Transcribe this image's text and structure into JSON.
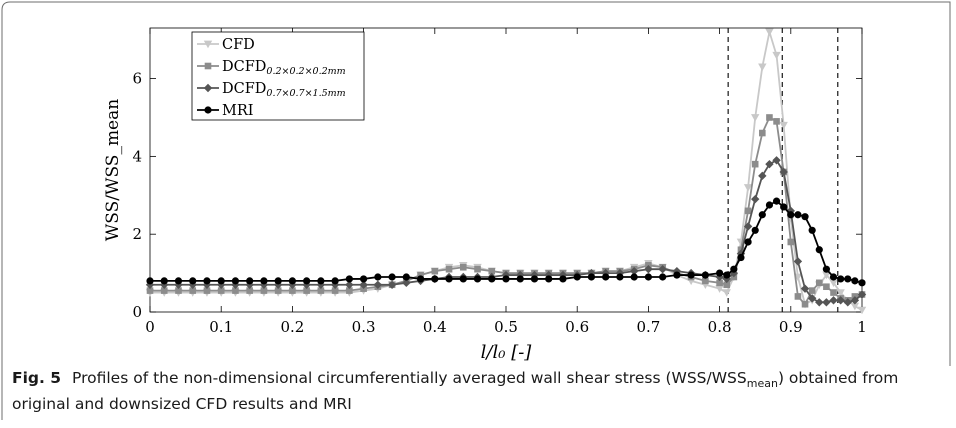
{
  "caption": {
    "label": "Fig. 5",
    "text_before": "Profiles of the non-dimensional circumferentially averaged wall shear stress (WSS/WSS",
    "text_sub": "mean",
    "text_after": ") obtained from original and downsized CFD results and MRI"
  },
  "chart_data": {
    "type": "line",
    "title": "",
    "xlabel": "l/l₀ [-]",
    "ylabel": "WSS/WSS_mean",
    "xlim": [
      0,
      1
    ],
    "ylim": [
      0,
      7.3
    ],
    "x_ticks": [
      0,
      0.1,
      0.2,
      0.3,
      0.4,
      0.5,
      0.6,
      0.7,
      0.8,
      0.9,
      1
    ],
    "x_tick_labels": [
      "0",
      "0.1",
      "0.2",
      "0.3",
      "0.4",
      "0.5",
      "0.6",
      "0.7",
      "0.8",
      "0.9",
      "1"
    ],
    "y_ticks": [
      0,
      2,
      4,
      6
    ],
    "y_tick_labels": [
      "0",
      "2",
      "4",
      "6"
    ],
    "grid": false,
    "legend_position": "top-left",
    "vertical_lines": [
      0.812,
      0.888,
      0.966
    ],
    "series": [
      {
        "name": "CFD",
        "legend_main": "CFD",
        "legend_sub": "",
        "color": "#c8c8c8",
        "marker": "triangle-down",
        "x": [
          0,
          0.02,
          0.04,
          0.06,
          0.08,
          0.1,
          0.12,
          0.14,
          0.16,
          0.18,
          0.2,
          0.22,
          0.24,
          0.26,
          0.28,
          0.3,
          0.32,
          0.34,
          0.36,
          0.38,
          0.4,
          0.42,
          0.44,
          0.46,
          0.48,
          0.5,
          0.52,
          0.54,
          0.56,
          0.58,
          0.6,
          0.62,
          0.64,
          0.66,
          0.68,
          0.7,
          0.72,
          0.74,
          0.76,
          0.78,
          0.8,
          0.81,
          0.82,
          0.83,
          0.84,
          0.85,
          0.86,
          0.87,
          0.88,
          0.89,
          0.9,
          0.91,
          0.92,
          0.93,
          0.94,
          0.95,
          0.96,
          0.97,
          0.98,
          0.99,
          1
        ],
        "y": [
          0.5,
          0.5,
          0.5,
          0.5,
          0.5,
          0.5,
          0.5,
          0.5,
          0.5,
          0.5,
          0.5,
          0.5,
          0.5,
          0.5,
          0.5,
          0.55,
          0.6,
          0.7,
          0.8,
          0.95,
          1.05,
          1.15,
          1.2,
          1.15,
          1.05,
          1.0,
          1.0,
          1.0,
          1.0,
          1.0,
          1.0,
          1.0,
          1.05,
          1.05,
          1.15,
          1.25,
          1.15,
          0.95,
          0.8,
          0.7,
          0.6,
          0.5,
          0.9,
          1.8,
          3.2,
          5.0,
          6.3,
          7.2,
          6.6,
          4.8,
          2.4,
          0.9,
          0.2,
          0.3,
          0.7,
          0.95,
          0.75,
          0.5,
          0.3,
          0.15,
          0.05
        ]
      },
      {
        "name": "DCFD 0.2×0.2×0.2mm",
        "legend_main": "DCFD",
        "legend_sub": "0.2×0.2×0.2mm",
        "color": "#8c8c8c",
        "marker": "square",
        "x": [
          0,
          0.02,
          0.04,
          0.06,
          0.08,
          0.1,
          0.12,
          0.14,
          0.16,
          0.18,
          0.2,
          0.22,
          0.24,
          0.26,
          0.28,
          0.3,
          0.32,
          0.34,
          0.36,
          0.38,
          0.4,
          0.42,
          0.44,
          0.46,
          0.48,
          0.5,
          0.52,
          0.54,
          0.56,
          0.58,
          0.6,
          0.62,
          0.64,
          0.66,
          0.68,
          0.7,
          0.72,
          0.74,
          0.76,
          0.78,
          0.8,
          0.81,
          0.82,
          0.83,
          0.84,
          0.85,
          0.86,
          0.87,
          0.88,
          0.89,
          0.9,
          0.91,
          0.92,
          0.93,
          0.94,
          0.95,
          0.96,
          0.97,
          0.98,
          0.99,
          1
        ],
        "y": [
          0.55,
          0.55,
          0.55,
          0.55,
          0.55,
          0.55,
          0.55,
          0.55,
          0.55,
          0.55,
          0.55,
          0.55,
          0.55,
          0.55,
          0.55,
          0.6,
          0.65,
          0.7,
          0.8,
          0.95,
          1.05,
          1.1,
          1.15,
          1.1,
          1.05,
          1.0,
          1.0,
          1.0,
          1.0,
          1.0,
          1.0,
          1.0,
          1.05,
          1.05,
          1.1,
          1.2,
          1.15,
          1.0,
          0.9,
          0.8,
          0.75,
          0.7,
          0.9,
          1.6,
          2.6,
          3.8,
          4.6,
          5.0,
          4.9,
          3.6,
          1.8,
          0.4,
          0.2,
          0.55,
          0.75,
          0.65,
          0.5,
          0.35,
          0.3,
          0.4,
          0.45
        ]
      },
      {
        "name": "DCFD 0.7×0.7×1.5mm",
        "legend_main": "DCFD",
        "legend_sub": "0.7×0.7×1.5mm",
        "color": "#555555",
        "marker": "diamond",
        "x": [
          0,
          0.02,
          0.04,
          0.06,
          0.08,
          0.1,
          0.12,
          0.14,
          0.16,
          0.18,
          0.2,
          0.22,
          0.24,
          0.26,
          0.28,
          0.3,
          0.32,
          0.34,
          0.36,
          0.38,
          0.4,
          0.42,
          0.44,
          0.46,
          0.48,
          0.5,
          0.52,
          0.54,
          0.56,
          0.58,
          0.6,
          0.62,
          0.64,
          0.66,
          0.68,
          0.7,
          0.72,
          0.74,
          0.76,
          0.78,
          0.8,
          0.81,
          0.82,
          0.83,
          0.84,
          0.85,
          0.86,
          0.87,
          0.88,
          0.89,
          0.9,
          0.91,
          0.92,
          0.93,
          0.94,
          0.95,
          0.96,
          0.97,
          0.98,
          0.99,
          1
        ],
        "y": [
          0.7,
          0.7,
          0.7,
          0.7,
          0.7,
          0.7,
          0.7,
          0.7,
          0.7,
          0.7,
          0.7,
          0.7,
          0.7,
          0.7,
          0.7,
          0.7,
          0.7,
          0.7,
          0.75,
          0.8,
          0.85,
          0.9,
          0.9,
          0.9,
          0.9,
          0.95,
          0.95,
          0.95,
          0.95,
          0.95,
          0.95,
          1.0,
          1.0,
          1.0,
          1.05,
          1.1,
          1.1,
          1.05,
          1.0,
          0.95,
          0.9,
          0.85,
          1.0,
          1.5,
          2.2,
          2.9,
          3.5,
          3.8,
          3.9,
          3.6,
          2.6,
          1.3,
          0.6,
          0.35,
          0.25,
          0.25,
          0.3,
          0.3,
          0.25,
          0.3,
          0.45
        ]
      },
      {
        "name": "MRI",
        "legend_main": "MRI",
        "legend_sub": "",
        "color": "#000000",
        "marker": "circle",
        "x": [
          0,
          0.02,
          0.04,
          0.06,
          0.08,
          0.1,
          0.12,
          0.14,
          0.16,
          0.18,
          0.2,
          0.22,
          0.24,
          0.26,
          0.28,
          0.3,
          0.32,
          0.34,
          0.36,
          0.38,
          0.4,
          0.42,
          0.44,
          0.46,
          0.48,
          0.5,
          0.52,
          0.54,
          0.56,
          0.58,
          0.6,
          0.62,
          0.64,
          0.66,
          0.68,
          0.7,
          0.72,
          0.74,
          0.76,
          0.78,
          0.8,
          0.81,
          0.82,
          0.83,
          0.84,
          0.85,
          0.86,
          0.87,
          0.88,
          0.89,
          0.9,
          0.91,
          0.92,
          0.93,
          0.94,
          0.95,
          0.96,
          0.97,
          0.98,
          0.99,
          1
        ],
        "y": [
          0.8,
          0.8,
          0.8,
          0.8,
          0.8,
          0.8,
          0.8,
          0.8,
          0.8,
          0.8,
          0.8,
          0.8,
          0.8,
          0.8,
          0.85,
          0.85,
          0.9,
          0.9,
          0.9,
          0.85,
          0.85,
          0.85,
          0.85,
          0.85,
          0.85,
          0.85,
          0.85,
          0.85,
          0.85,
          0.85,
          0.9,
          0.9,
          0.9,
          0.9,
          0.9,
          0.9,
          0.9,
          0.95,
          0.95,
          0.95,
          1.0,
          0.95,
          1.1,
          1.4,
          1.8,
          2.1,
          2.5,
          2.75,
          2.85,
          2.7,
          2.5,
          2.5,
          2.45,
          2.1,
          1.6,
          1.1,
          0.9,
          0.85,
          0.85,
          0.8,
          0.75
        ]
      }
    ]
  }
}
